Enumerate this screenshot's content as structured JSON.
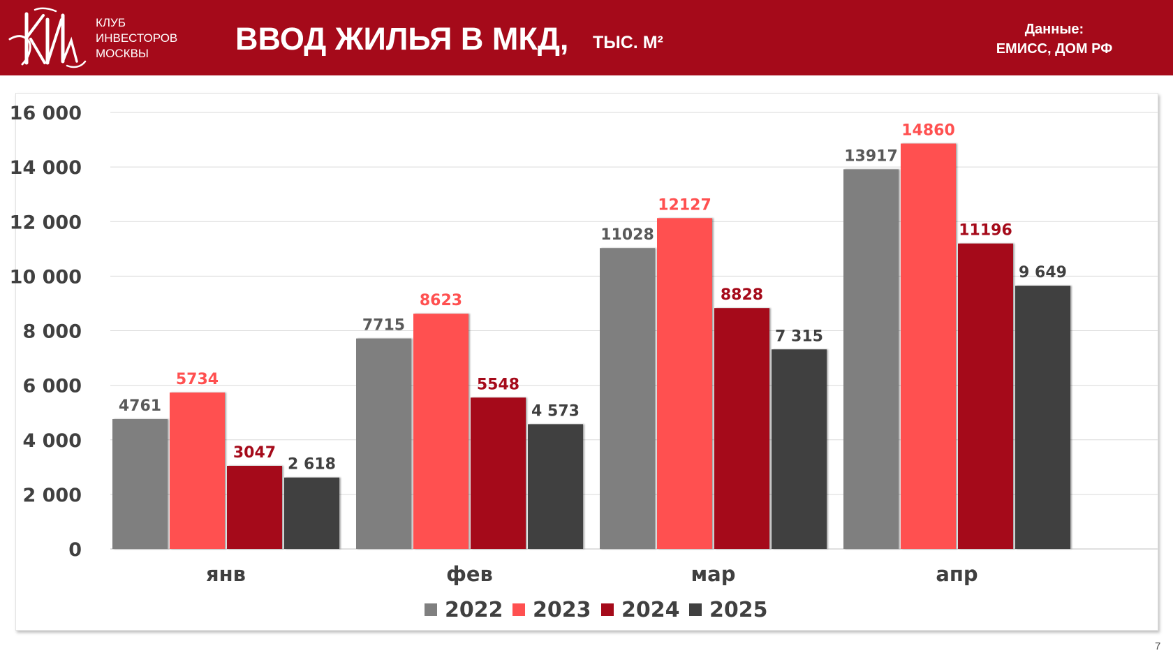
{
  "header": {
    "logo": {
      "icon": "club-monogram-logo",
      "text": "КИМ"
    },
    "club_lines": [
      "КЛУБ",
      "ИНВЕСТОРОВ",
      "МОСКВЫ"
    ],
    "title": "ВВОД ЖИЛЬЯ В МКД,",
    "subtitle": "ТЫС. М²",
    "source_label": "Данные:",
    "source_value": "ЕМИСС, ДОМ РФ"
  },
  "colors": {
    "header_bg": "#a50a1a",
    "s2022": "#7f7f7f",
    "s2023": "#ff5050",
    "s2024": "#a50a1a",
    "s2025": "#404040"
  },
  "chart_data": {
    "type": "bar",
    "title": "",
    "xlabel": "",
    "ylabel": "",
    "categories": [
      "янв",
      "фев",
      "мар",
      "апр"
    ],
    "ylim": [
      0,
      16000
    ],
    "yticks": [
      0,
      2000,
      4000,
      6000,
      8000,
      10000,
      12000,
      14000,
      16000
    ],
    "ytick_labels": [
      "0",
      "2 000",
      "4 000",
      "6 000",
      "8 000",
      "10 000",
      "12 000",
      "14 000",
      "16 000"
    ],
    "grid": true,
    "legend_position": "bottom",
    "series": [
      {
        "name": "2022",
        "color": "#7f7f7f",
        "label_color": "#595959",
        "values": [
          4761,
          7715,
          11028,
          13917
        ],
        "labels": [
          "4761",
          "7715",
          "11028",
          "13917"
        ]
      },
      {
        "name": "2023",
        "color": "#ff5050",
        "label_color": "#ff5050",
        "values": [
          5734,
          8623,
          12127,
          14860
        ],
        "labels": [
          "5734",
          "8623",
          "12127",
          "14860"
        ]
      },
      {
        "name": "2024",
        "color": "#a50a1a",
        "label_color": "#a50a1a",
        "values": [
          3047,
          5548,
          8828,
          11196
        ],
        "labels": [
          "3047",
          "5548",
          "8828",
          "11196"
        ]
      },
      {
        "name": "2025",
        "color": "#404040",
        "label_color": "#404040",
        "values": [
          2618,
          4573,
          7315,
          9649
        ],
        "labels": [
          "2 618",
          "4 573",
          "7 315",
          "9 649"
        ]
      }
    ]
  },
  "footer": {
    "page_number": "7"
  }
}
